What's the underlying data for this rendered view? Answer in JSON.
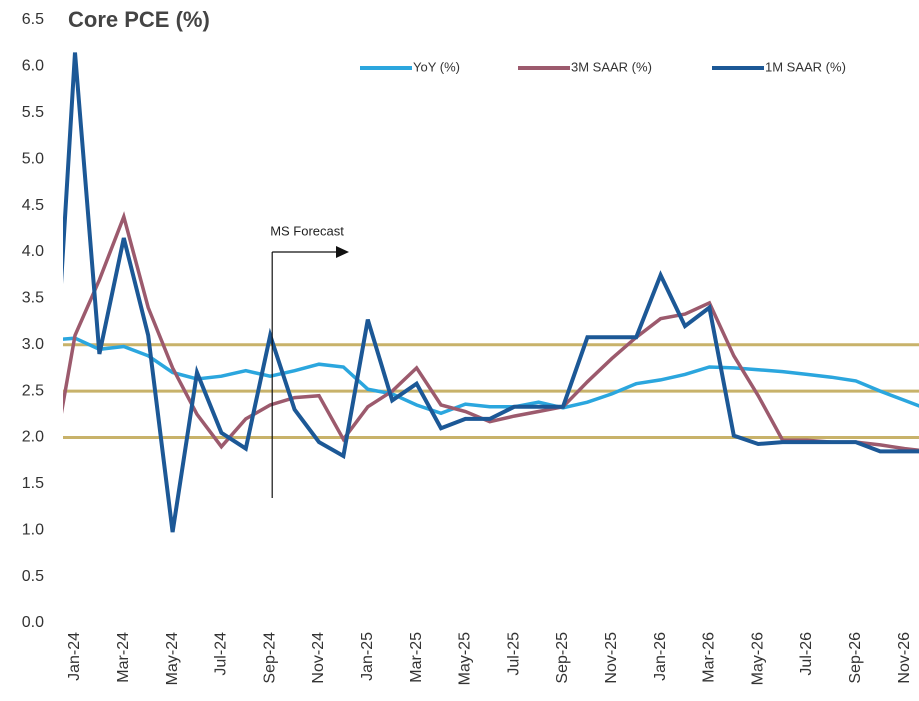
{
  "chart_data": {
    "type": "line",
    "title": "Core PCE (%)",
    "categories": [
      null,
      "Jan-24",
      null,
      "Mar-24",
      null,
      "May-24",
      null,
      "Jul-24",
      null,
      "Sep-24",
      null,
      "Nov-24",
      null,
      "Jan-25",
      null,
      "Mar-25",
      null,
      "May-25",
      null,
      "Jul-25",
      null,
      "Sep-25",
      null,
      "Nov-25",
      null,
      "Jan-26",
      null,
      "Mar-26",
      null,
      "May-26",
      null,
      "Jul-26",
      null,
      "Sep-26",
      null,
      "Nov-26",
      null
    ],
    "series": [
      {
        "name": "YoY (%)",
        "color": "#2ba6de",
        "values": [
          3.05,
          3.07,
          2.95,
          2.98,
          2.88,
          2.7,
          2.63,
          2.66,
          2.72,
          2.66,
          2.72,
          2.79,
          2.76,
          2.52,
          2.47,
          2.35,
          2.26,
          2.36,
          2.33,
          2.33,
          2.38,
          2.32,
          2.38,
          2.47,
          2.58,
          2.62,
          2.68,
          2.76,
          2.75,
          2.73,
          2.71,
          2.68,
          2.65,
          2.61,
          2.5,
          2.4,
          2.3
        ]
      },
      {
        "name": "3M SAAR (%)",
        "color": "#9c5a6d",
        "values": [
          1.6,
          3.1,
          3.7,
          4.38,
          3.4,
          2.75,
          2.25,
          1.9,
          2.2,
          2.35,
          2.43,
          2.45,
          1.98,
          2.33,
          2.5,
          2.75,
          2.35,
          2.28,
          2.17,
          2.23,
          2.28,
          2.33,
          2.6,
          2.85,
          3.08,
          3.28,
          3.33,
          3.45,
          2.88,
          2.45,
          1.97,
          1.97,
          1.95,
          1.95,
          1.92,
          1.88,
          1.85
        ]
      },
      {
        "name": "1M SAAR (%)",
        "color": "#1c5896",
        "values": [
          1.8,
          6.15,
          2.9,
          4.15,
          3.1,
          0.98,
          2.7,
          2.05,
          1.88,
          3.1,
          2.3,
          1.95,
          1.8,
          3.27,
          2.4,
          2.58,
          2.1,
          2.2,
          2.2,
          2.33,
          2.33,
          2.33,
          3.08,
          3.08,
          3.08,
          3.75,
          3.2,
          3.4,
          2.02,
          1.93,
          1.95,
          1.95,
          1.95,
          1.95,
          1.85,
          1.85,
          1.85
        ]
      }
    ],
    "ylim": [
      0,
      6.5
    ],
    "yticks": [
      {
        "value": 0,
        "label": "0.0"
      },
      0.5,
      {
        "value": 1,
        "label": "1.0"
      },
      1.5,
      {
        "value": 2,
        "label": "2.0"
      },
      2.5,
      {
        "value": 3,
        "label": "3.0"
      },
      3.5,
      {
        "value": 4,
        "label": "4.0"
      },
      4.5,
      {
        "value": 5,
        "label": "5.0"
      },
      5.5,
      {
        "value": 6,
        "label": "6.0"
      },
      6.5
    ],
    "reference_lines": [
      3,
      2.5,
      2
    ],
    "reference_color": "#c8b26a",
    "annotation": {
      "text": "MS Forecast",
      "x": "Sep-24"
    },
    "legend": "top",
    "grid": false
  }
}
